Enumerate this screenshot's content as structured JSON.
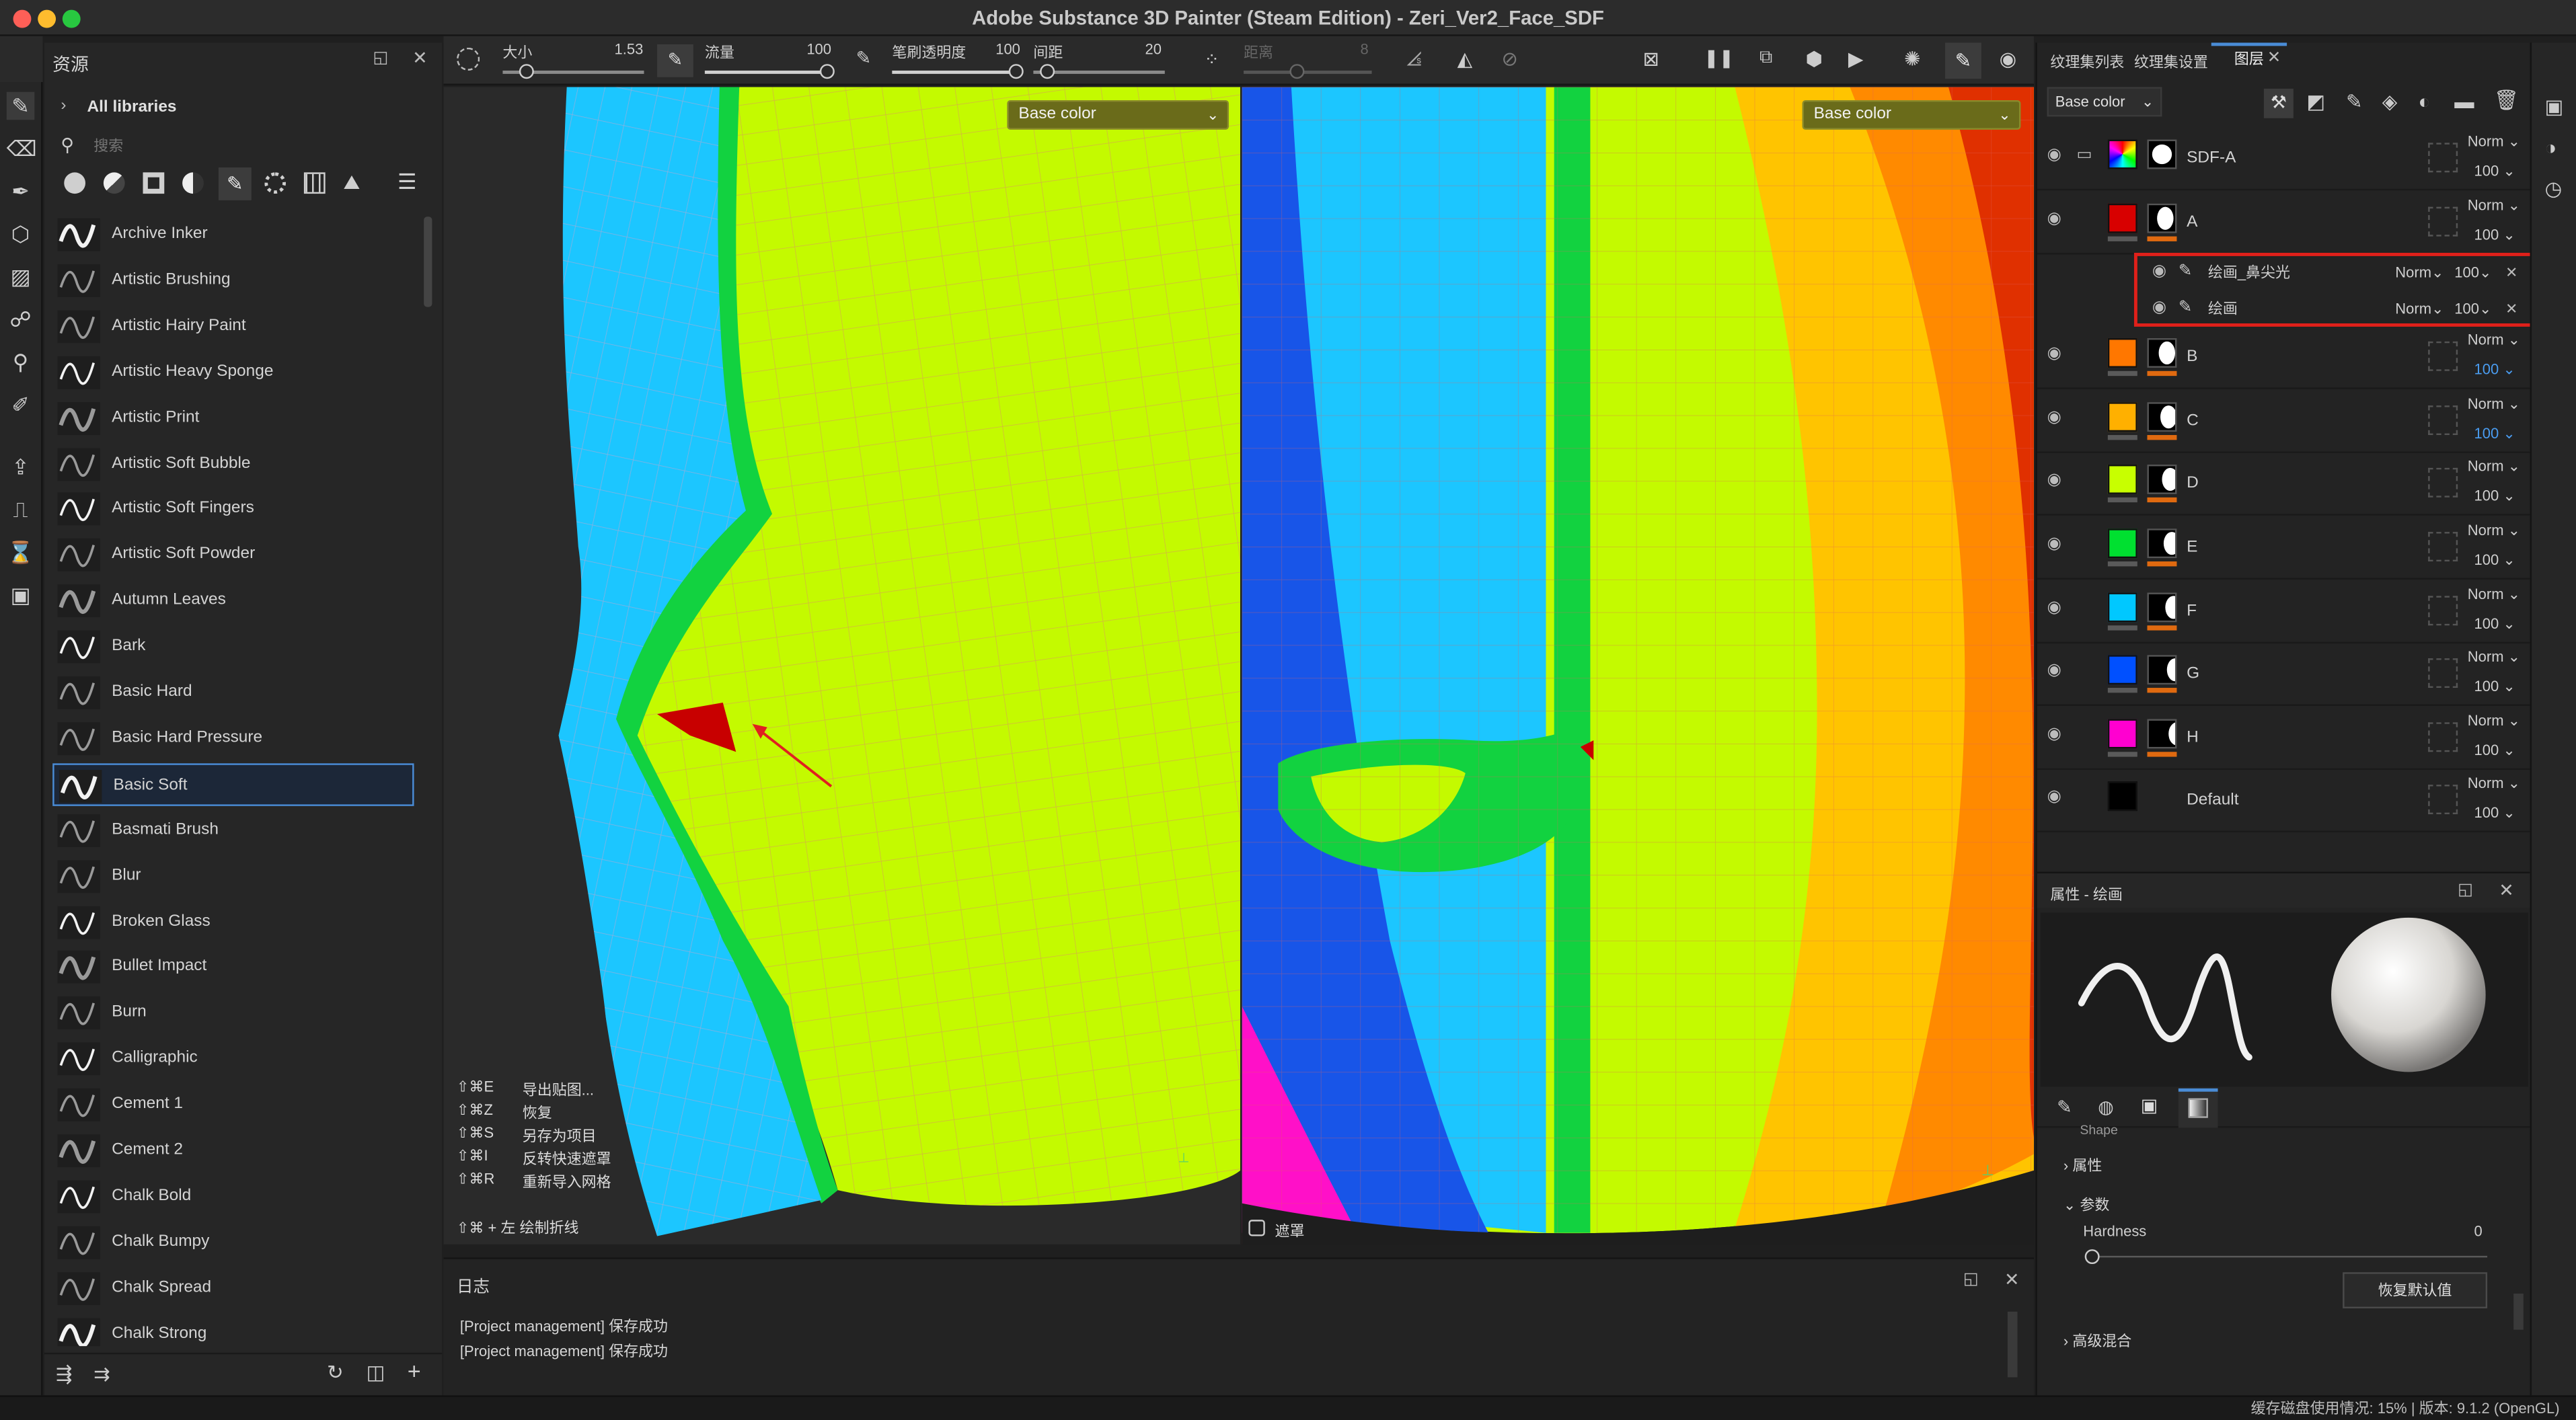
{
  "window": {
    "title": "Adobe Substance 3D Painter (Steam Edition) - Zeri_Ver2_Face_SDF"
  },
  "assets": {
    "title": "资源",
    "library": "All libraries",
    "search_placeholder": "搜索",
    "brushes": [
      "Archive Inker",
      "Artistic Brushing",
      "Artistic Hairy Paint",
      "Artistic Heavy Sponge",
      "Artistic Print",
      "Artistic Soft Bubble",
      "Artistic Soft Fingers",
      "Artistic Soft Powder",
      "Autumn Leaves",
      "Bark",
      "Basic Hard",
      "Basic Hard Pressure",
      "Basic Soft",
      "Basmati Brush",
      "Blur",
      "Broken Glass",
      "Bullet Impact",
      "Burn",
      "Calligraphic",
      "Cement 1",
      "Cement 2",
      "Chalk Bold",
      "Chalk Bumpy",
      "Chalk Spread",
      "Chalk Strong"
    ],
    "selected_brush": "Basic Soft"
  },
  "toolbar": {
    "size_label": "大小",
    "size_value": "1.53",
    "flow_label": "流量",
    "flow_value": "100",
    "opacity_label": "笔刷透明度",
    "opacity_value": "100",
    "spacing_label": "间距",
    "spacing_value": "20",
    "distance_label": "距离",
    "distance_value": "8"
  },
  "viewport_left": {
    "channel": "Base color",
    "shortcuts": [
      {
        "key": "⇧⌘E",
        "label": "导出贴图..."
      },
      {
        "key": "⇧⌘Z",
        "label": "恢复"
      },
      {
        "key": "⇧⌘S",
        "label": "另存为项目"
      },
      {
        "key": "⇧⌘I",
        "label": "反转快速遮罩"
      },
      {
        "key": "⇧⌘R",
        "label": "重新导入网格"
      }
    ],
    "hint": "⇧⌘ + 左  绘制折线"
  },
  "viewport_right": {
    "channel": "Base color",
    "mask_label": "遮罩"
  },
  "log": {
    "title": "日志",
    "lines": [
      "[Project management] 保存成功",
      "[Project management] 保存成功"
    ]
  },
  "layers_panel": {
    "tabs": [
      "纹理集列表",
      "纹理集设置",
      "图层"
    ],
    "channel_select": "Base color",
    "layers": [
      {
        "name": "SDF-A",
        "blend": "Norm",
        "opacity": "100",
        "color": "#8a5cff"
      },
      {
        "name": "A",
        "blend": "Norm",
        "opacity": "100",
        "color": "#d80000"
      },
      {
        "name": "B",
        "blend": "Norm",
        "opacity": "100",
        "color": "#ff7700"
      },
      {
        "name": "C",
        "blend": "Norm",
        "opacity": "100",
        "color": "#ffb000"
      },
      {
        "name": "D",
        "blend": "Norm",
        "opacity": "100",
        "color": "#c8ff00"
      },
      {
        "name": "E",
        "blend": "Norm",
        "opacity": "100",
        "color": "#00e030"
      },
      {
        "name": "F",
        "blend": "Norm",
        "opacity": "100",
        "color": "#00c8ff"
      },
      {
        "name": "G",
        "blend": "Norm",
        "opacity": "100",
        "color": "#0050ff"
      },
      {
        "name": "H",
        "blend": "Norm",
        "opacity": "100",
        "color": "#ff00d0"
      },
      {
        "name": "Default",
        "blend": "Norm",
        "opacity": "100",
        "color": "#000000"
      }
    ],
    "sublayers": [
      {
        "name": "绘画_鼻尖光",
        "blend": "Norm",
        "opacity": "100"
      },
      {
        "name": "绘画",
        "blend": "Norm",
        "opacity": "100"
      }
    ]
  },
  "properties": {
    "title": "属性 - 绘画",
    "shape_label": "Shape",
    "section_props": "属性",
    "section_params": "参数",
    "hardness_label": "Hardness",
    "hardness_value": "0",
    "reset_button": "恢复默认值",
    "section_advanced": "高级混合"
  },
  "status": {
    "text": "缓存磁盘使用情况:      15% | 版本: 9.1.2 (OpenGL)"
  },
  "colors": {
    "accent": "#4a8cd6",
    "highlight_box": "#e0201a",
    "channel_bg": "#6a6b1a"
  }
}
